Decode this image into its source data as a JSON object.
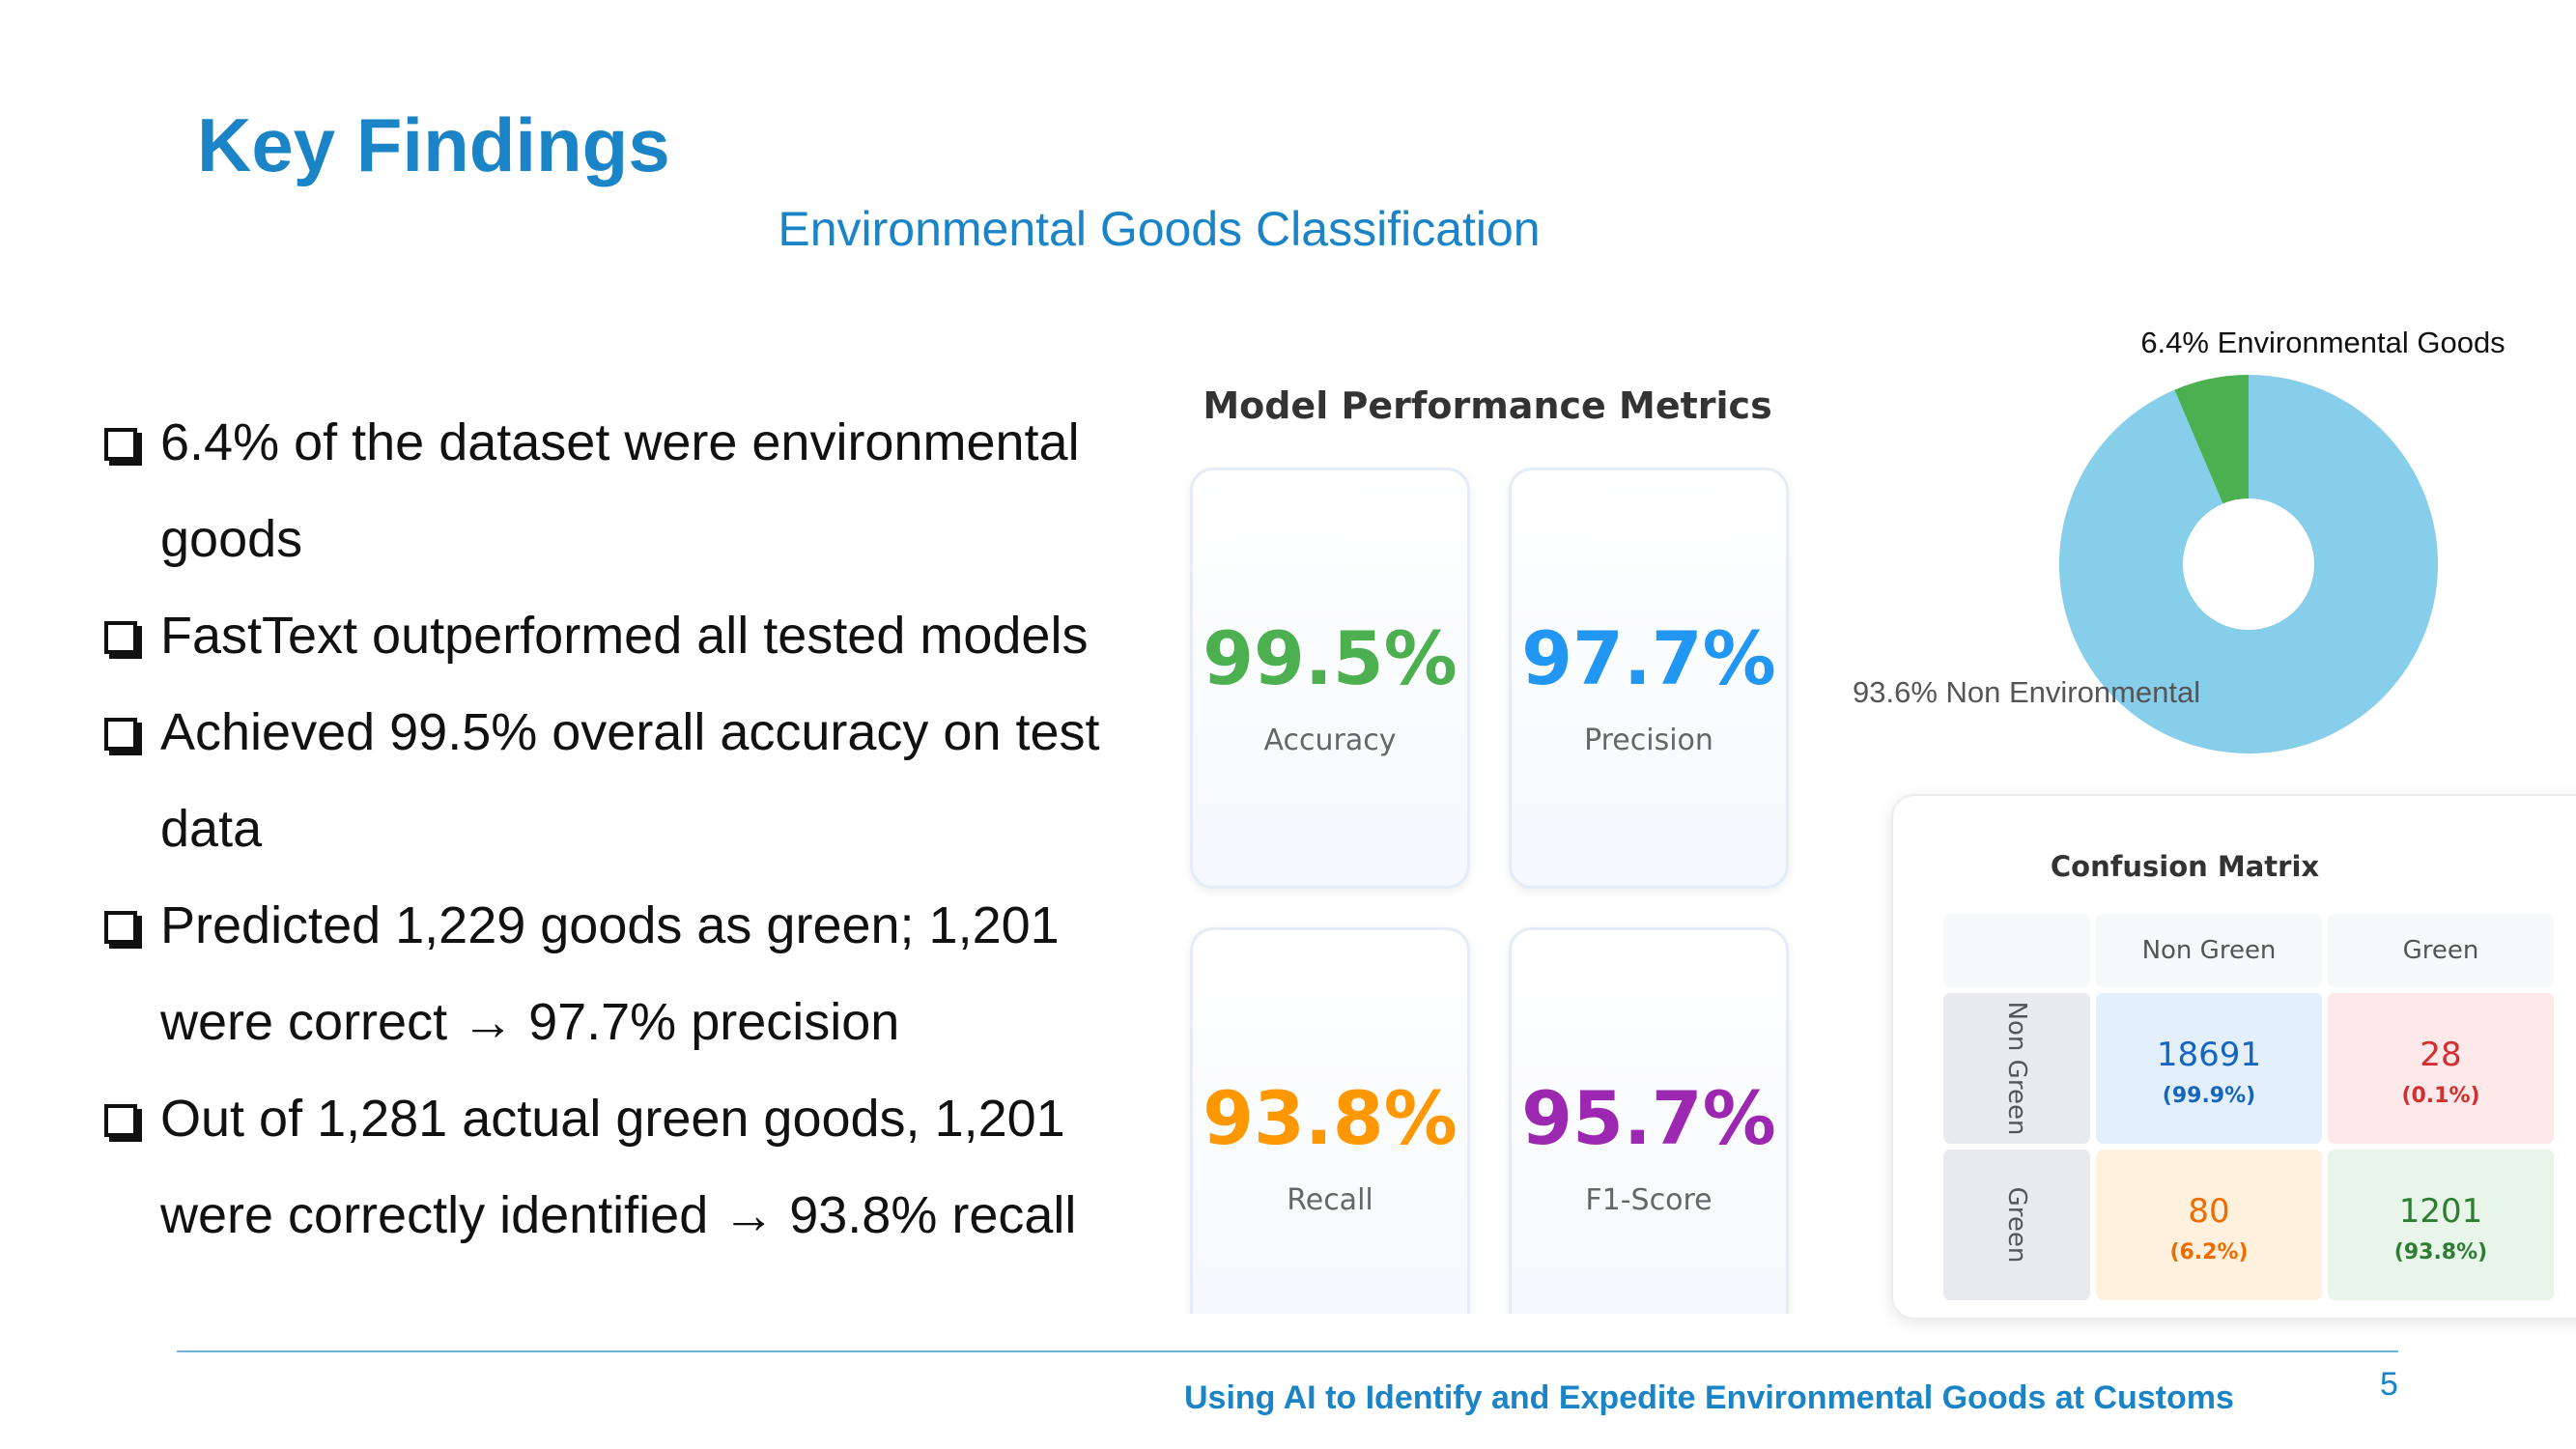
{
  "slide": {
    "title": "Key Findings",
    "subtitle": "Environmental Goods Classification",
    "page_number": "5",
    "footer": "Using AI to Identify and Expedite Environmental Goods at Customs"
  },
  "bullets": [
    "6.4% of the dataset were environmental goods",
    "FastText outperformed all tested models",
    "Achieved 99.5% overall accuracy on test data",
    "Predicted 1,229 goods as green; 1,201 were correct → 97.7% precision",
    "Out of 1,281 actual green goods, 1,201 were correctly identified → 93.8% recall"
  ],
  "metrics": {
    "title": "Model Performance Metrics",
    "cards": [
      {
        "value": "99.5%",
        "label": "Accuracy",
        "color": "#4caf50"
      },
      {
        "value": "97.7%",
        "label": "Precision",
        "color": "#2196f3"
      },
      {
        "value": "93.8%",
        "label": "Recall",
        "color": "#ff9800"
      },
      {
        "value": "95.7%",
        "label": "F1-Score",
        "color": "#9c27b0"
      }
    ]
  },
  "chart_data": {
    "type": "pie",
    "categories": [
      "Environmental Goods",
      "Non Environmental"
    ],
    "values": [
      6.4,
      93.6
    ],
    "labels": [
      "6.4% Environmental Goods",
      "93.6% Non Environmental"
    ],
    "colors": [
      "#4caf50",
      "#87ceeb"
    ],
    "donut": true
  },
  "confusion_matrix": {
    "title": "Confusion Matrix",
    "columns": [
      "Non Green",
      "Green"
    ],
    "rows": [
      {
        "label": "Non Green",
        "cells": [
          {
            "count": "18691",
            "pct": "(99.9%)",
            "bg": "#e3f0fc",
            "color": "#1565c0"
          },
          {
            "count": "28",
            "pct": "(0.1%)",
            "bg": "#fde8ea",
            "color": "#d32f2f"
          }
        ]
      },
      {
        "label": "Green",
        "cells": [
          {
            "count": "80",
            "pct": "(6.2%)",
            "bg": "#fff1dd",
            "color": "#ef6c00"
          },
          {
            "count": "1201",
            "pct": "(93.8%)",
            "bg": "#e8f5e9",
            "color": "#2e7d32"
          }
        ]
      }
    ]
  }
}
